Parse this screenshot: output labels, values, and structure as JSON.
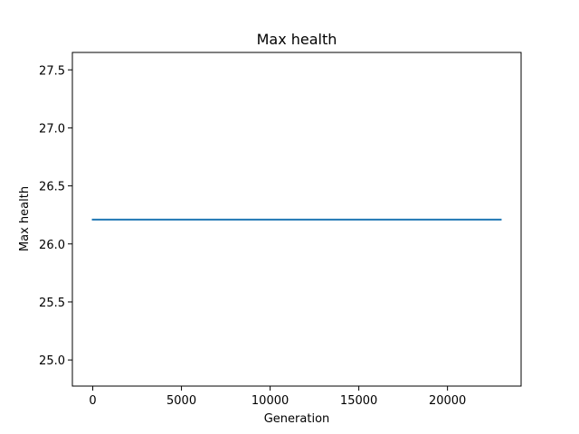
{
  "chart_data": {
    "type": "line",
    "title": "Max health",
    "xlabel": "Generation",
    "ylabel": "Max health",
    "xlim": [
      -1150,
      24150
    ],
    "ylim": [
      24.775,
      27.65
    ],
    "xticks": [
      0,
      5000,
      10000,
      15000,
      20000
    ],
    "xtick_labels": [
      "0",
      "5000",
      "10000",
      "15000",
      "20000"
    ],
    "yticks": [
      25.0,
      25.5,
      26.0,
      26.5,
      27.0,
      27.5
    ],
    "ytick_labels": [
      "25.0",
      "25.5",
      "26.0",
      "26.5",
      "27.0",
      "27.5"
    ],
    "grid": false,
    "series": [
      {
        "color": "#1f77b4",
        "x": [
          0,
          23000
        ],
        "y": [
          26.21,
          26.21
        ]
      }
    ]
  }
}
